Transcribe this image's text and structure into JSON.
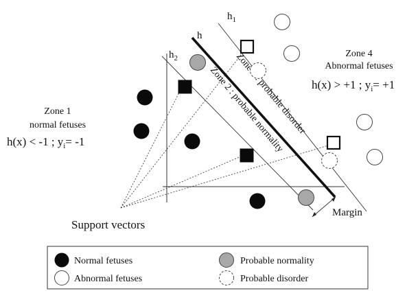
{
  "zone1": {
    "title": "Zone 1",
    "subtitle": "normal fetuses",
    "equation": {
      "part1": "h(x) < -1 ; y",
      "sub": "i",
      "part2": "= -1"
    }
  },
  "zone4": {
    "title": "Zone 4",
    "subtitle": "Abnormal fetuses",
    "equation": {
      "part1": "h(x) > +1 ; y",
      "sub": "i",
      "part2": "= +1"
    }
  },
  "zone2_label": "Zone 2 : probable normality",
  "zone3_label": "Zone 3 : probable disorder",
  "hyperplanes": {
    "h": "h",
    "h1": {
      "base": "h",
      "sub": "1"
    },
    "h2": {
      "base": "h",
      "sub": "2"
    }
  },
  "support_vectors_label": "Support vectors",
  "margin_label": "Margin",
  "legend": {
    "normal": "Normal fetuses",
    "abnormal": "Abnormal fetuses",
    "probable_normality": "Probable normality",
    "probable_disorder": "Probable disorder"
  },
  "colors": {
    "normal": "#0a0a0a",
    "probable_normality": "#a8a8a8"
  }
}
